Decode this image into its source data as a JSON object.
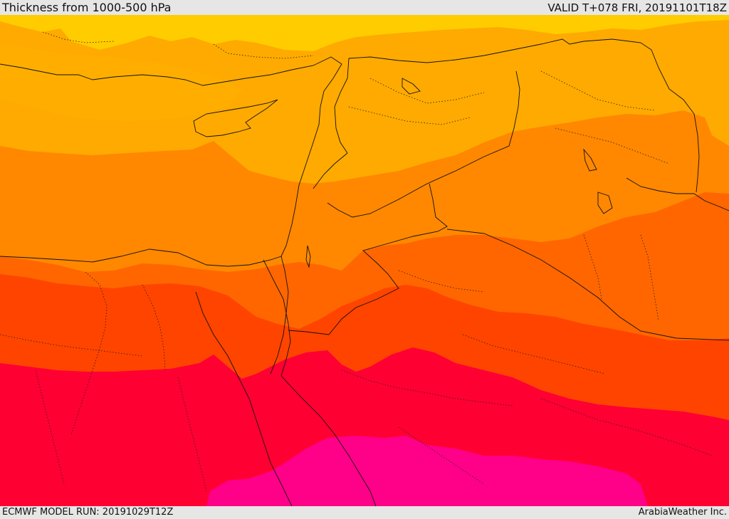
{
  "header": {
    "title": "Thickness from 1000-500 hPa",
    "valid_time": "VALID T+078 FRI, 20191101T18Z"
  },
  "footer": {
    "model_run": "ECMWF MODEL RUN: 20191029T12Z",
    "credit": "ArabiaWeather Inc."
  },
  "map": {
    "field": "1000-500 hPa thickness",
    "color_bands": [
      "#ffcc00",
      "#ffaa00",
      "#ff8800",
      "#ff6600",
      "#ff4400",
      "#ff0033",
      "#ff0088"
    ]
  }
}
